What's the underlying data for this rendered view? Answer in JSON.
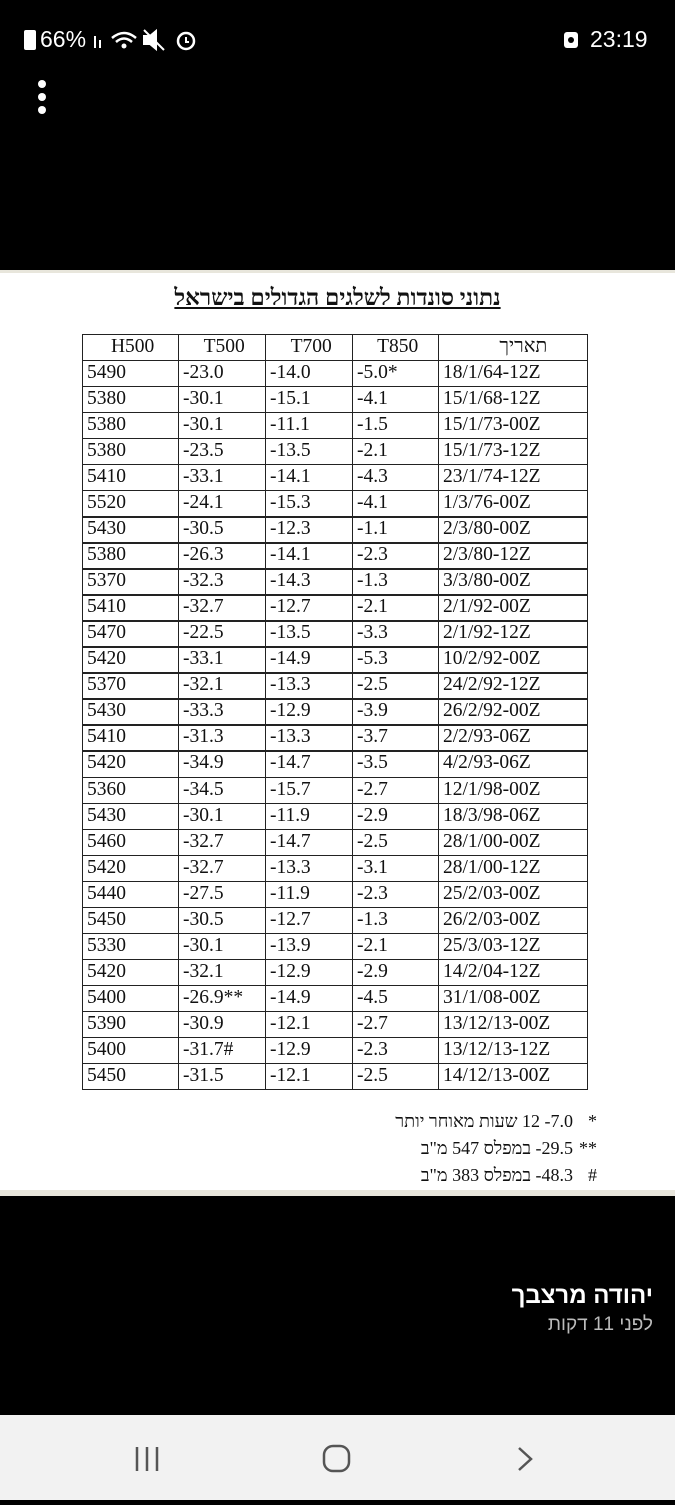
{
  "status_bar": {
    "battery": "66%",
    "time": "23:19"
  },
  "image": {
    "title": "נתוני סונדות לשלגים הגדולים בישראל",
    "table": {
      "header": [
        "H500",
        "T500",
        "T700",
        "T850",
        "תאריך"
      ],
      "rows": [
        [
          "5490",
          "-23.0",
          "-14.0",
          "-5.0*",
          "18/1/64-12Z"
        ],
        [
          "5380",
          "-30.1",
          "-15.1",
          "-4.1",
          "15/1/68-12Z"
        ],
        [
          "5380",
          "-30.1",
          "-11.1",
          "-1.5",
          "15/1/73-00Z"
        ],
        [
          "5380",
          "-23.5",
          "-13.5",
          "-2.1",
          "15/1/73-12Z"
        ],
        [
          "5410",
          "-33.1",
          "-14.1",
          "-4.3",
          "23/1/74-12Z"
        ],
        [
          "5520",
          "-24.1",
          "-15.3",
          "-4.1",
          "1/3/76-00Z"
        ],
        [
          "5430",
          "-30.5",
          "-12.3",
          "-1.1",
          "2/3/80-00Z"
        ],
        [
          "5380",
          "-26.3",
          "-14.1",
          "-2.3",
          "2/3/80-12Z"
        ],
        [
          "5370",
          "-32.3",
          "-14.3",
          "-1.3",
          "3/3/80-00Z"
        ],
        [
          "5410",
          "-32.7",
          "-12.7",
          "-2.1",
          "2/1/92-00Z"
        ],
        [
          "5470",
          "-22.5",
          "-13.5",
          "-3.3",
          "2/1/92-12Z"
        ],
        [
          "5420",
          "-33.1",
          "-14.9",
          "-5.3",
          "10/2/92-00Z"
        ],
        [
          "5370",
          "-32.1",
          "-13.3",
          "-2.5",
          "24/2/92-12Z"
        ],
        [
          "5430",
          "-33.3",
          "-12.9",
          "-3.9",
          "26/2/92-00Z"
        ],
        [
          "5410",
          "-31.3",
          "-13.3",
          "-3.7",
          "2/2/93-06Z"
        ],
        [
          "5420",
          "-34.9",
          "-14.7",
          "-3.5",
          "4/2/93-06Z"
        ],
        [
          "5360",
          "-34.5",
          "-15.7",
          "-2.7",
          "12/1/98-00Z"
        ],
        [
          "5430",
          "-30.1",
          "-11.9",
          "-2.9",
          "18/3/98-06Z"
        ],
        [
          "5460",
          "-32.7",
          "-14.7",
          "-2.5",
          "28/1/00-00Z"
        ],
        [
          "5420",
          "-32.7",
          "-13.3",
          "-3.1",
          "28/1/00-12Z"
        ],
        [
          "5440",
          "-27.5",
          "-11.9",
          "-2.3",
          "25/2/03-00Z"
        ],
        [
          "5450",
          "-30.5",
          "-12.7",
          "-1.3",
          "26/2/03-00Z"
        ],
        [
          "5330",
          "-30.1",
          "-13.9",
          "-2.1",
          "25/3/03-12Z"
        ],
        [
          "5420",
          "-32.1",
          "-12.9",
          "-2.9",
          "14/2/04-12Z"
        ],
        [
          "5400",
          "-26.9**",
          "-14.9",
          "-4.5",
          "31/1/08-00Z"
        ],
        [
          "5390",
          "-30.9",
          "-12.1",
          "-2.7",
          "13/12/13-00Z"
        ],
        [
          "5400",
          "-31.7#",
          "-12.9",
          "-2.3",
          "13/12/13-12Z"
        ],
        [
          "5450",
          "-31.5",
          "-12.1",
          "-2.5",
          "14/12/13-00Z"
        ]
      ]
    },
    "footnotes": [
      {
        "marker": "*",
        "text": "7.0- 12 שעות מאוחר יותר"
      },
      {
        "marker": "**",
        "text": "29.5- במפלס 547 מ\"ב"
      },
      {
        "marker": "#",
        "text": "48.3- במפלס 383 מ\"ב"
      }
    ]
  },
  "post": {
    "author": "יהודה מרצבך",
    "time": "לפני 11 דקות"
  }
}
